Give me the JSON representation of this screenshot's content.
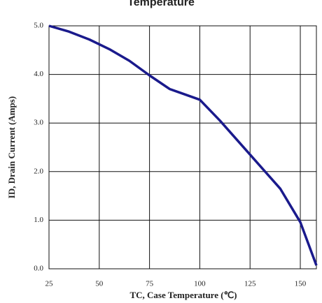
{
  "chart_data": {
    "type": "line",
    "title": "Temperature",
    "x_label": "TC, Case Temperature (℃)",
    "y_label": "ID, Drain Current (Amps)",
    "x": [
      25,
      35,
      45,
      55,
      65,
      75,
      85,
      100,
      110,
      125,
      140,
      150,
      158
    ],
    "series": [
      {
        "name": "ID",
        "color": "#1a1a8c",
        "values": [
          5.0,
          4.88,
          4.72,
          4.52,
          4.28,
          3.98,
          3.7,
          3.48,
          3.05,
          2.35,
          1.65,
          0.96,
          0.07
        ]
      }
    ],
    "xlim": [
      25,
      158
    ],
    "xticks": [
      25,
      50,
      75,
      100,
      125,
      150
    ],
    "ylim": [
      0,
      5
    ],
    "yticks": [
      {
        "value": 0,
        "label": "0.0"
      },
      {
        "value": 1,
        "label": "1.0"
      },
      {
        "value": 2,
        "label": "2.0"
      },
      {
        "value": 3,
        "label": "3.0"
      },
      {
        "value": 4,
        "label": "4.0"
      },
      {
        "value": 5,
        "label": "5.0"
      }
    ],
    "grid": true
  }
}
